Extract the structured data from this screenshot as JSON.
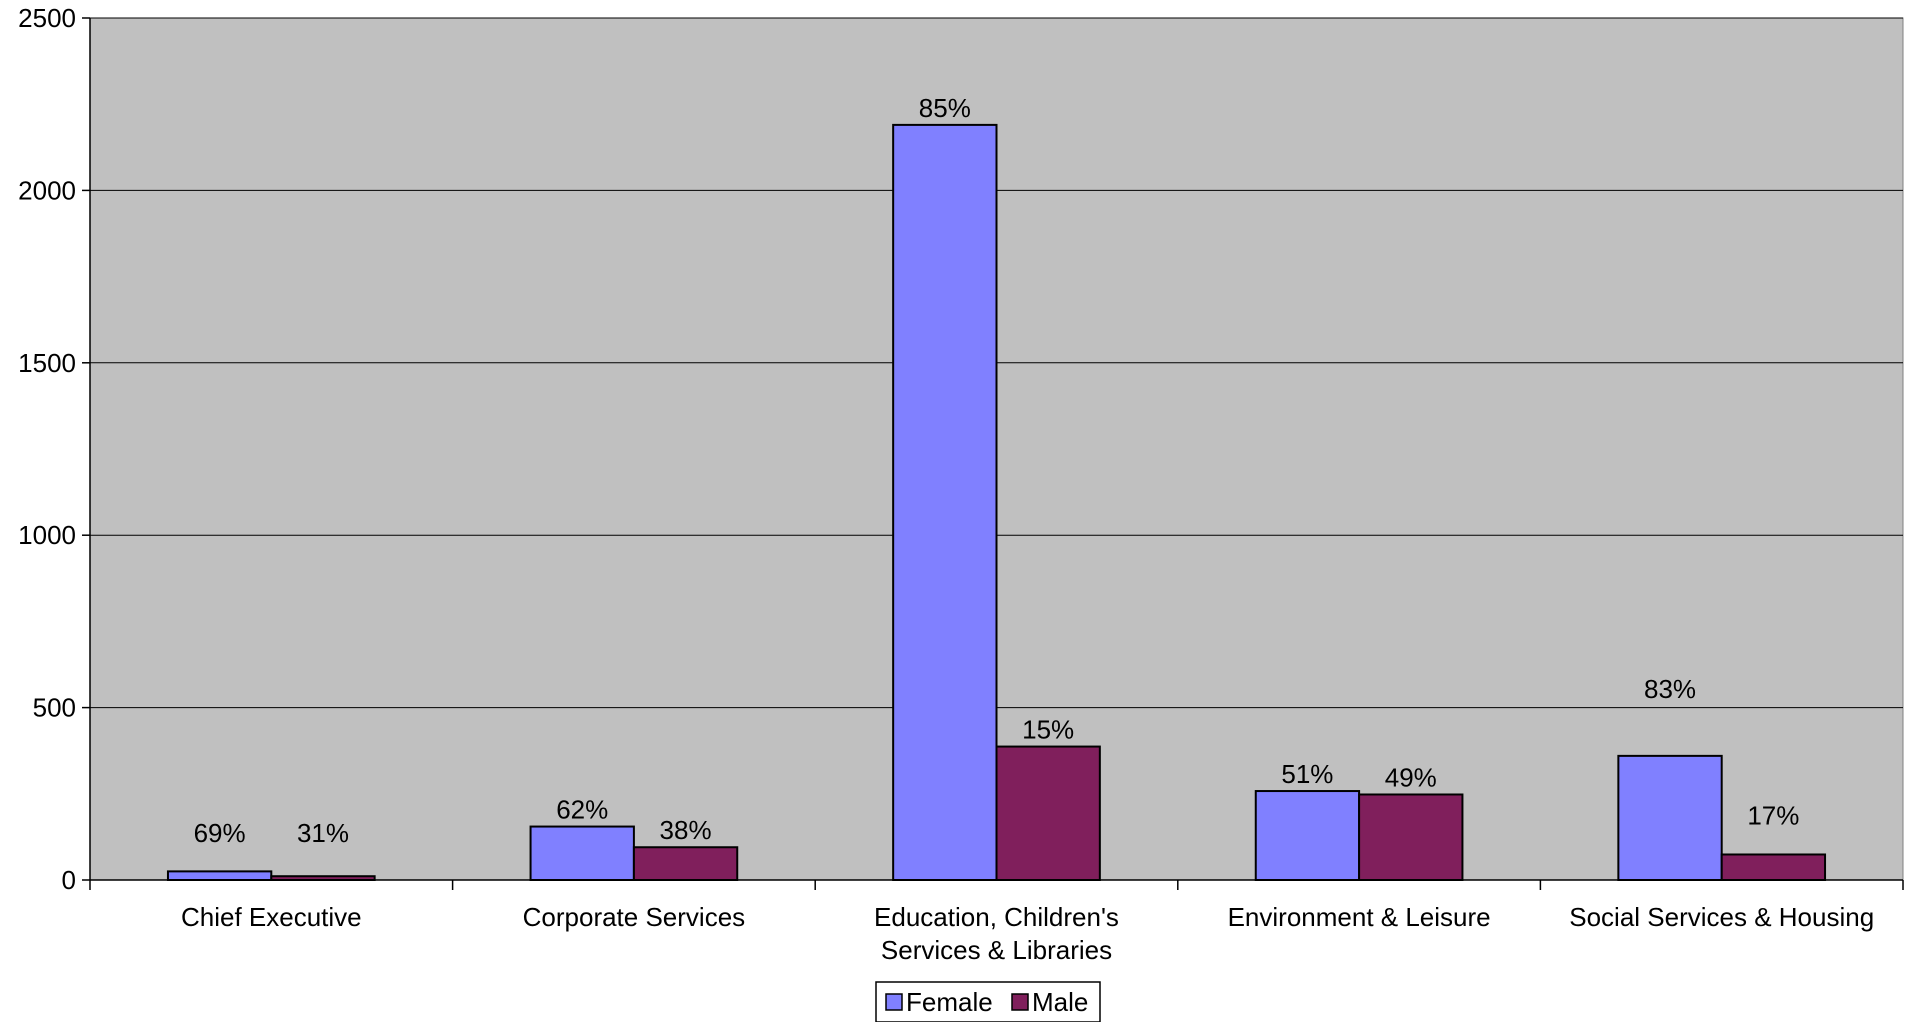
{
  "chart_data": {
    "type": "bar",
    "categories": [
      [
        "Chief Executive"
      ],
      [
        "Corporate Services"
      ],
      [
        "Education, Children's",
        "Services & Libraries"
      ],
      [
        "Environment & Leisure"
      ],
      [
        "Social Services & Housing"
      ]
    ],
    "series": [
      {
        "name": "Female",
        "color": "#8080ff",
        "values": [
          25,
          155,
          2190,
          258,
          360
        ],
        "labels": [
          "69%",
          "62%",
          "85%",
          "51%",
          "83%"
        ]
      },
      {
        "name": "Male",
        "color": "#801f5c",
        "values": [
          11,
          95,
          387,
          248,
          74
        ],
        "labels": [
          "31%",
          "38%",
          "15%",
          "49%",
          "17%"
        ]
      }
    ],
    "ylim": [
      0,
      2500
    ],
    "yticks": [
      0,
      500,
      1000,
      1500,
      2000,
      2500
    ],
    "grid": true,
    "legend_position": "bottom",
    "plot_background": "#c0c0c0"
  }
}
